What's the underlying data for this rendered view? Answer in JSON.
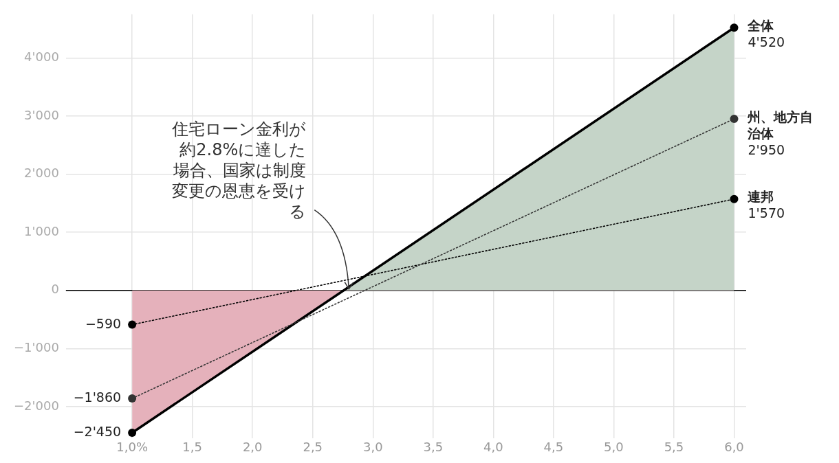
{
  "chart_data": {
    "type": "line",
    "xlim": [
      0.45,
      6.1
    ],
    "xticks": [
      {
        "value": 1,
        "label": "1,0%"
      },
      {
        "value": 1.5,
        "label": "1,5"
      },
      {
        "value": 2,
        "label": "2,0"
      },
      {
        "value": 2.5,
        "label": "2,5"
      },
      {
        "value": 3,
        "label": "3,0"
      },
      {
        "value": 3.5,
        "label": "3,5"
      },
      {
        "value": 4,
        "label": "4,0"
      },
      {
        "value": 4.5,
        "label": "4,5"
      },
      {
        "value": 5,
        "label": "5,0"
      },
      {
        "value": 5.5,
        "label": "5,5"
      },
      {
        "value": 6,
        "label": "6,0"
      }
    ],
    "ylim": [
      -2550,
      4750
    ],
    "yticks": [
      {
        "value": -2000,
        "label": "−2'000"
      },
      {
        "value": -1000,
        "label": "−1'000"
      },
      0,
      {
        "value": 1000,
        "label": "1'000"
      },
      {
        "value": 2000,
        "label": "2'000"
      },
      {
        "value": 3000,
        "label": "3'000"
      },
      {
        "value": 4000,
        "label": "4'000"
      }
    ],
    "x": [
      1,
      6
    ],
    "series": [
      {
        "name": "全体",
        "type": "area",
        "color": "#000000",
        "colors": [
          "#e5b1bb",
          "#c5d4c8"
        ],
        "line_style": "solid",
        "values": [
          -2450,
          4520
        ],
        "value_labels": [
          "−2'450",
          "4'520"
        ]
      },
      {
        "name": "州、地方自治体",
        "color": "#333333",
        "line_style": "dotted",
        "values": [
          -1860,
          2950
        ],
        "value_labels": [
          "−1'860",
          "2'950"
        ]
      },
      {
        "name": "連邦",
        "color": "#000000",
        "line_style": "dotted",
        "values": [
          -590,
          1570
        ],
        "value_labels": [
          "−590",
          "1'570"
        ]
      }
    ],
    "ref_lines": [
      {
        "axis": "y",
        "value": 0,
        "color": "#000000"
      }
    ],
    "annotations": [
      {
        "text": "住宅ローン金利が約2.8%に達した場合、国家は制度変更の恩恵を受ける",
        "x": 2.8,
        "y": 0
      }
    ],
    "grid": true,
    "legend": false,
    "marker": "circle"
  }
}
